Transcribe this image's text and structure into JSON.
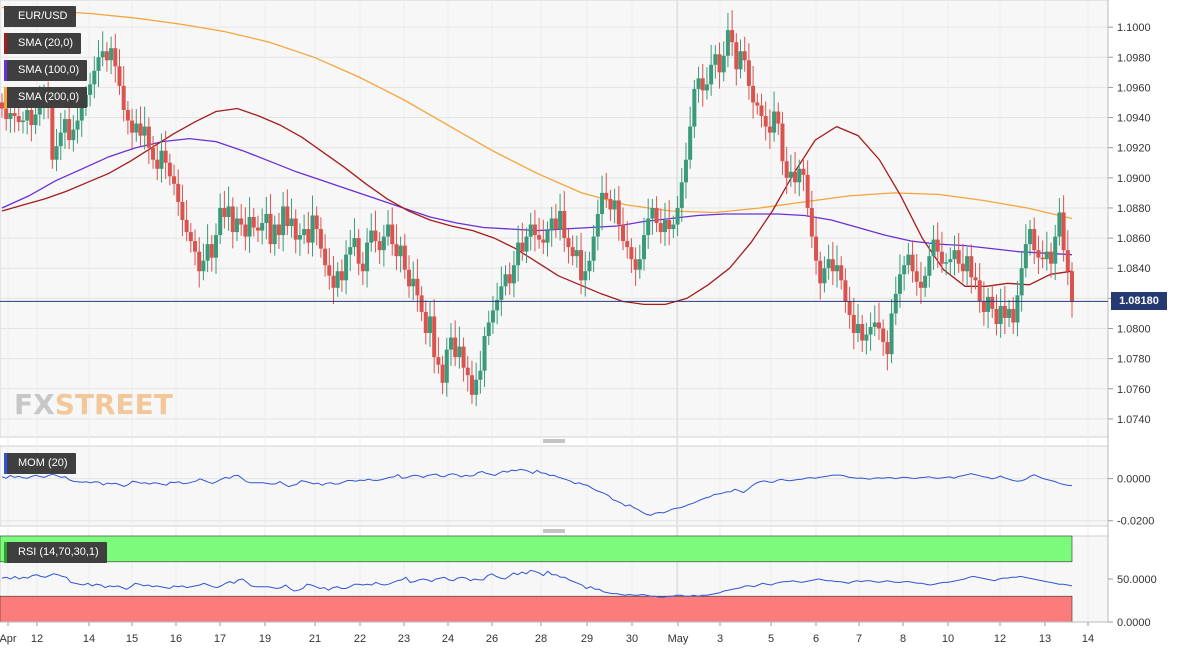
{
  "indicators": {
    "symbol": "EUR/USD",
    "sma20": "SMA (20,0)",
    "sma100": "SMA (100,0)",
    "sma200": "SMA (200,0)",
    "mom": "MOM (20)",
    "rsi": "RSI (14,70,30,1)"
  },
  "logo": {
    "fx": "FX",
    "street": "STREET"
  },
  "last_price": "1.08180",
  "colors": {
    "up": "#3a9a79",
    "down": "#d9534f",
    "sma20": "#a51c1c",
    "sma100": "#6a2fd6",
    "sma200": "#f5a43a",
    "momentum": "#2f55d4",
    "rsi_line": "#2f55d4",
    "rsi_overbought": "#7cfa7c",
    "rsi_oversold": "#fc7c7c",
    "price_line": "#253a73"
  },
  "chart_data": [
    {
      "type": "candlestick",
      "title": "EUR/USD",
      "ylim": [
        1.0728,
        1.1018
      ],
      "y_ticks": [
        "1.0740",
        "1.0760",
        "1.0780",
        "1.0800",
        "1.0820",
        "1.0840",
        "1.0860",
        "1.0880",
        "1.0900",
        "1.0920",
        "1.0940",
        "1.0960",
        "1.0980",
        "1.1000"
      ],
      "x_ticks": [
        "Apr",
        "12",
        "14",
        "15",
        "16",
        "17",
        "19",
        "21",
        "22",
        "23",
        "24",
        "26",
        "28",
        "29",
        "30",
        "May",
        "3",
        "5",
        "6",
        "7",
        "8",
        "10",
        "12",
        "13",
        "14"
      ],
      "series_closes": [
        1.0946,
        1.0939,
        1.0943,
        1.0941,
        1.0937,
        1.0938,
        1.0945,
        1.0935,
        1.0942,
        1.0948,
        1.0956,
        1.095,
        1.0912,
        1.0921,
        1.093,
        1.0939,
        1.0925,
        1.0932,
        1.0938,
        1.0947,
        1.0955,
        1.0962,
        1.0971,
        1.098,
        1.0984,
        1.0978,
        1.0986,
        1.0974,
        1.0961,
        1.0945,
        1.0938,
        1.093,
        1.0936,
        1.0928,
        1.0934,
        1.092,
        1.0912,
        1.0906,
        1.0918,
        1.091,
        1.0901,
        1.0896,
        1.0884,
        1.0872,
        1.0864,
        1.0858,
        1.0851,
        1.0838,
        1.0845,
        1.0856,
        1.0847,
        1.0862,
        1.088,
        1.0874,
        1.0881,
        1.0864,
        1.0873,
        1.0869,
        1.0861,
        1.0874,
        1.0867,
        1.0865,
        1.087,
        1.0876,
        1.0856,
        1.0869,
        1.0862,
        1.0881,
        1.0868,
        1.0873,
        1.0859,
        1.0862,
        1.0866,
        1.0857,
        1.0875,
        1.0866,
        1.0853,
        1.0842,
        1.0835,
        1.0827,
        1.0838,
        1.0832,
        1.0849,
        1.0854,
        1.086,
        1.0843,
        1.0838,
        1.0857,
        1.0865,
        1.0858,
        1.0852,
        1.0861,
        1.0869,
        1.0856,
        1.0848,
        1.0855,
        1.0839,
        1.0828,
        1.0833,
        1.0822,
        1.0811,
        1.0797,
        1.0808,
        1.0781,
        1.0776,
        1.0764,
        1.0786,
        1.0794,
        1.0781,
        1.0788,
        1.0774,
        1.0769,
        1.0756,
        1.0766,
        1.0772,
        1.0795,
        1.0804,
        1.0812,
        1.0819,
        1.0828,
        1.0836,
        1.083,
        1.0842,
        1.0857,
        1.0851,
        1.0861,
        1.0869,
        1.0862,
        1.0859,
        1.0857,
        1.0865,
        1.0873,
        1.0866,
        1.0878,
        1.086,
        1.0854,
        1.0848,
        1.0852,
        1.0832,
        1.0838,
        1.0845,
        1.0861,
        1.0876,
        1.089,
        1.0886,
        1.0879,
        1.0885,
        1.0869,
        1.0858,
        1.0854,
        1.0846,
        1.0839,
        1.0846,
        1.0862,
        1.0873,
        1.088,
        1.087,
        1.0864,
        1.0872,
        1.0866,
        1.0869,
        1.088,
        1.0897,
        1.0912,
        1.0934,
        1.0959,
        1.0966,
        1.0958,
        1.0962,
        1.0975,
        1.0982,
        1.097,
        1.0981,
        1.0998,
        1.099,
        1.0972,
        1.0984,
        1.0978,
        1.0961,
        1.095,
        1.0948,
        1.0941,
        1.0934,
        1.093,
        1.0944,
        1.0936,
        1.0911,
        1.09,
        1.0904,
        1.0897,
        1.0906,
        1.0902,
        1.088,
        1.0861,
        1.0845,
        1.083,
        1.084,
        1.0846,
        1.0838,
        1.0842,
        1.0832,
        1.0818,
        1.0809,
        1.0797,
        1.0803,
        1.0792,
        1.0796,
        1.0801,
        1.0804,
        1.08,
        1.0791,
        1.0783,
        1.081,
        1.0823,
        1.0836,
        1.0842,
        1.0849,
        1.0838,
        1.0831,
        1.0827,
        1.0835,
        1.0848,
        1.0859,
        1.0851,
        1.0843,
        1.0844,
        1.0846,
        1.0852,
        1.0843,
        1.0838,
        1.0848,
        1.0834,
        1.0832,
        1.0818,
        1.0811,
        1.0821,
        1.0813,
        1.0803,
        1.0815,
        1.0807,
        1.0813,
        1.0804,
        1.0822,
        1.084,
        1.0856,
        1.0866,
        1.0852,
        1.0847,
        1.0846,
        1.0851,
        1.0843,
        1.0861,
        1.0877,
        1.0852,
        1.0838,
        1.0818
      ],
      "sma20": [
        1.0878,
        1.0882,
        1.0886,
        1.0891,
        1.0897,
        1.0903,
        1.0911,
        1.092,
        1.0929,
        1.0937,
        1.0944,
        1.0946,
        1.0941,
        1.0935,
        1.0927,
        1.0917,
        1.0907,
        1.0896,
        1.0886,
        1.0878,
        1.0872,
        1.0868,
        1.0865,
        1.086,
        1.0853,
        1.0844,
        1.0835,
        1.0829,
        1.0823,
        1.0818,
        1.0816,
        1.0816,
        1.082,
        1.0829,
        1.084,
        1.0857,
        1.0878,
        1.0903,
        1.0925,
        1.0934,
        1.0928,
        1.0912,
        1.0888,
        1.086,
        1.0839,
        1.0828,
        1.0828,
        1.083,
        1.0829,
        1.0836,
        1.0838
      ],
      "sma100": [
        1.088,
        1.0888,
        1.0898,
        1.0906,
        1.0914,
        1.092,
        1.0924,
        1.0926,
        1.0924,
        1.0918,
        1.0911,
        1.0904,
        1.0898,
        1.0892,
        1.0886,
        1.088,
        1.0874,
        1.087,
        1.0867,
        1.0866,
        1.0865,
        1.0866,
        1.0867,
        1.0868,
        1.0871,
        1.0873,
        1.0875,
        1.0876,
        1.0876,
        1.0876,
        1.0875,
        1.0872,
        1.0867,
        1.0862,
        1.0858,
        1.0856,
        1.0855,
        1.0853,
        1.0851,
        1.085,
        1.0849
      ],
      "sma200": [
        1.1013,
        1.1011,
        1.1009,
        1.1006,
        1.1002,
        1.0997,
        1.099,
        1.098,
        1.0967,
        1.0952,
        1.0935,
        1.0918,
        1.0903,
        1.089,
        1.0882,
        1.0878,
        1.0877,
        1.088,
        1.0884,
        1.0888,
        1.089,
        1.0889,
        1.0885,
        1.088,
        1.0873
      ],
      "last_price": 1.0818
    },
    {
      "type": "line",
      "title": "MOM (20)",
      "ylim": [
        -0.0225,
        0.0155
      ],
      "y_ticks": [
        "0.0000",
        "-0.0200"
      ],
      "values": [
        0.0009,
        0.0002,
        0.0015,
        0.0006,
        0.0011,
        0.0004,
        0.0002,
        0.001,
        0.0016,
        0.001,
        0.0006,
        0.0014,
        0.0021,
        0.0014,
        0.0006,
        0.0009,
        -0.0006,
        -0.0013,
        -0.0015,
        -0.0017,
        -0.0015,
        -0.002,
        -0.0015,
        -0.0016,
        -0.003,
        -0.0021,
        -0.0024,
        -0.0022,
        -0.003,
        -0.0037,
        -0.0028,
        -0.0012,
        -0.0016,
        -0.0022,
        -0.002,
        -0.0026,
        -0.002,
        -0.0022,
        -0.0027,
        -0.0031,
        -0.0017,
        -0.0019,
        -0.0015,
        -0.0024,
        -0.0022,
        -0.0017,
        -0.0012,
        -0.0001,
        -0.0009,
        -0.0017,
        -0.0023,
        -0.0014,
        -0.0003,
        0.0006,
        0.0001,
        0.0014,
        0.0016,
        0.0001,
        -0.0014,
        -0.002,
        -0.002,
        -0.002,
        -0.002,
        -0.0023,
        -0.0026,
        -0.0024,
        -0.0014,
        -0.0027,
        -0.0038,
        -0.0032,
        -0.0027,
        -0.001,
        -0.0013,
        -0.0019,
        -0.0025,
        -0.0021,
        -0.0031,
        -0.0022,
        -0.002,
        -0.0026,
        -0.0025,
        -0.0017,
        -0.0009,
        -0.0009,
        -0.0012,
        -0.0007,
        -0.0009,
        -0.0002,
        -0.0008,
        -0.0009,
        -0.0005,
        0.0,
        0.0006,
        0.0008,
        0.0019,
        0.0002,
        0.0004,
        0.0012,
        0.0016,
        0.0013,
        0.0006,
        0.0015,
        0.0018,
        0.0022,
        0.0012,
        0.0009,
        0.0019,
        0.0023,
        0.0018,
        0.0008,
        0.0016,
        0.0012,
        0.0014,
        0.0029,
        0.0034,
        0.0025,
        0.002,
        0.0015,
        0.0026,
        0.0036,
        0.0031,
        0.004,
        0.0037,
        0.0044,
        0.0041,
        0.0035,
        0.0025,
        0.0039,
        0.0027,
        0.0025,
        0.0015,
        0.0016,
        0.0007,
        0.0001,
        -0.0005,
        -0.0012,
        -0.0024,
        -0.002,
        -0.0028,
        -0.0032,
        -0.0045,
        -0.0056,
        -0.0063,
        -0.007,
        -0.0081,
        -0.01,
        -0.0107,
        -0.0116,
        -0.013,
        -0.0125,
        -0.0138,
        -0.0147,
        -0.016,
        -0.017,
        -0.0174,
        -0.0164,
        -0.0161,
        -0.0163,
        -0.0155,
        -0.0145,
        -0.0141,
        -0.0138,
        -0.0132,
        -0.0123,
        -0.0117,
        -0.0108,
        -0.0099,
        -0.0092,
        -0.0087,
        -0.0076,
        -0.0073,
        -0.0069,
        -0.0063,
        -0.0062,
        -0.005,
        -0.0058,
        -0.0066,
        -0.0052,
        -0.0035,
        -0.0021,
        -0.0014,
        -0.0011,
        -0.0016,
        -0.0018,
        -0.0008,
        -0.0003,
        -0.0008,
        -0.001,
        -0.0007,
        -0.0004,
        -0.0002,
        0.0003,
        0.0005,
        0.0002,
        0.0006,
        0.0009,
        0.0012,
        0.0016,
        0.0017,
        0.0017,
        0.0013,
        0.0007,
        0.0004,
        0.0002,
        0.0003,
        0.0,
        -0.0003,
        0.0002,
        0.0004,
        0.0002,
        0.0004,
        0.0005,
        0.0,
        0.0003,
        0.0007,
        0.0005,
        0.0002,
        0.0001,
        0.0005,
        0.0006,
        0.0009,
        0.0004,
        0.0001,
        0.0003,
        0.0006,
        0.0008,
        0.0002,
        0.001,
        0.0014,
        0.0018,
        0.0024,
        0.0019,
        0.0014,
        0.0009,
        0.0006,
        -0.0001,
        0.0004,
        0.0012,
        0.0004,
        -0.0002,
        -0.0009,
        -0.0012,
        -0.001,
        -0.0003,
        0.001,
        0.0018,
        0.001,
        0.0001,
        -0.0004,
        -0.0009,
        -0.0014,
        -0.0022,
        -0.0028,
        -0.0031,
        -0.0033
      ]
    },
    {
      "type": "line",
      "title": "RSI (14,70,30,1)",
      "ylim": [
        0,
        100
      ],
      "y_ticks": [
        "50.0000",
        "0.0000"
      ],
      "bands": {
        "overbought": 70,
        "oversold": 30
      },
      "values": [
        51,
        52,
        50,
        53,
        50,
        52,
        51,
        54,
        55,
        53,
        52,
        54,
        56,
        55,
        53,
        52,
        46,
        45,
        44,
        43,
        45,
        42,
        44,
        43,
        40,
        42,
        41,
        42,
        40,
        38,
        41,
        45,
        44,
        42,
        43,
        41,
        42,
        41,
        40,
        39,
        42,
        41,
        42,
        40,
        41,
        42,
        43,
        45,
        43,
        41,
        40,
        42,
        45,
        47,
        45,
        49,
        50,
        46,
        42,
        41,
        41,
        41,
        41,
        40,
        39,
        40,
        43,
        39,
        36,
        37,
        39,
        44,
        43,
        41,
        39,
        40,
        37,
        40,
        41,
        39,
        39,
        41,
        44,
        44,
        43,
        44,
        43,
        46,
        44,
        43,
        44,
        46,
        48,
        49,
        52,
        46,
        47,
        49,
        50,
        49,
        47,
        50,
        51,
        52,
        49,
        48,
        51,
        52,
        51,
        48,
        50,
        49,
        49,
        54,
        56,
        53,
        51,
        50,
        53,
        57,
        55,
        58,
        56,
        60,
        59,
        57,
        54,
        59,
        55,
        55,
        52,
        52,
        49,
        47,
        45,
        43,
        39,
        41,
        38,
        38,
        35,
        34,
        33,
        33,
        32,
        31,
        32,
        31,
        31,
        32,
        31,
        30,
        30,
        29,
        29,
        30,
        30,
        31,
        31,
        30,
        30,
        31,
        30,
        31,
        31,
        32,
        33,
        34,
        36,
        37,
        38,
        39,
        40,
        42,
        42,
        41,
        43,
        45,
        44,
        43,
        45,
        46,
        47,
        47,
        48,
        47,
        46,
        47,
        48,
        49,
        50,
        49,
        48,
        48,
        47,
        47,
        46,
        45,
        47,
        48,
        47,
        48,
        48,
        47,
        46,
        47,
        48,
        47,
        46,
        46,
        47,
        47,
        46,
        45,
        45,
        44,
        43,
        44,
        45,
        46,
        46,
        47,
        48,
        49,
        50,
        52,
        53,
        52,
        51,
        50,
        49,
        48,
        50,
        51,
        51,
        52,
        52,
        53,
        52,
        51,
        50,
        49,
        48,
        47,
        46,
        45,
        44,
        44,
        43,
        42
      ]
    }
  ]
}
